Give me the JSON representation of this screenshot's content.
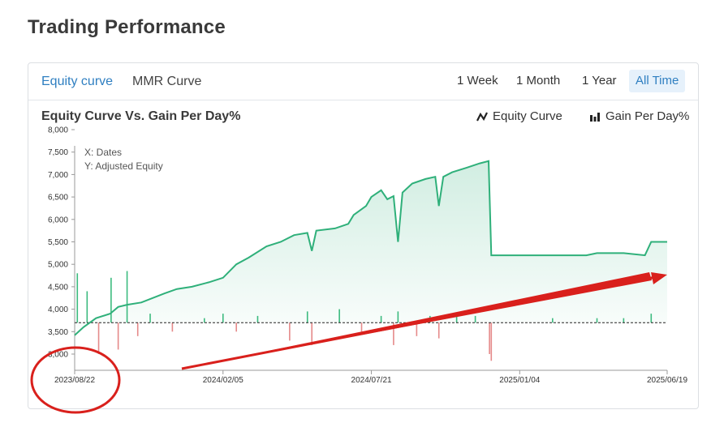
{
  "page": {
    "title": "Trading Performance"
  },
  "tabs": [
    {
      "label": "Equity curve",
      "active": true
    },
    {
      "label": "MMR Curve",
      "active": false
    }
  ],
  "ranges": [
    {
      "label": "1 Week",
      "active": false
    },
    {
      "label": "1 Month",
      "active": false
    },
    {
      "label": "1 Year",
      "active": false
    },
    {
      "label": "All Time",
      "active": true
    }
  ],
  "chart": {
    "title": "Equity Curve Vs. Gain Per Day%",
    "legend": [
      {
        "label": "Equity Curve",
        "icon": "line-chart-icon"
      },
      {
        "label": "Gain Per Day%",
        "icon": "bar-chart-icon"
      }
    ],
    "info": {
      "x": "X: Dates",
      "y": "Y: Adjusted Equity"
    }
  },
  "colors": {
    "accent": "#2f7fc1",
    "equity_line": "#2fb07a",
    "gain_positive": "#3dbb7f",
    "gain_negative": "#e58a8a",
    "annotation": "#d9201c"
  },
  "chart_data": {
    "type": "line",
    "title": "Equity Curve Vs. Gain Per Day%",
    "xlabel": "Dates",
    "ylabel": "Adjusted Equity",
    "y_ticks": [
      "8,000",
      "7,500",
      "7,000",
      "6,500",
      "6,000",
      "5,500",
      "5,000",
      "4,500",
      "4,000",
      "3,500",
      "3,000"
    ],
    "x_ticks": [
      "2023/08/22",
      "2024/02/05",
      "2024/07/21",
      "2025/01/04",
      "2025/06/19"
    ],
    "ylim": [
      3000,
      8000
    ],
    "xlim": [
      "2023/08/22",
      "2025/06/19"
    ],
    "baseline": 3700,
    "series": [
      {
        "name": "Equity Curve",
        "type": "line",
        "points": [
          [
            "2023/08/22",
            3420
          ],
          [
            "2023/09/01",
            3600
          ],
          [
            "2023/09/15",
            3800
          ],
          [
            "2023/10/01",
            3900
          ],
          [
            "2023/10/10",
            4050
          ],
          [
            "2023/10/20",
            4100
          ],
          [
            "2023/11/05",
            4150
          ],
          [
            "2023/12/01",
            4350
          ],
          [
            "2023/12/15",
            4450
          ],
          [
            "2024/01/01",
            4500
          ],
          [
            "2024/01/20",
            4600
          ],
          [
            "2024/02/05",
            4700
          ],
          [
            "2024/02/20",
            5000
          ],
          [
            "2024/03/05",
            5150
          ],
          [
            "2024/03/25",
            5400
          ],
          [
            "2024/04/10",
            5500
          ],
          [
            "2024/04/25",
            5650
          ],
          [
            "2024/05/10",
            5700
          ],
          [
            "2024/05/15",
            5300
          ],
          [
            "2024/05/20",
            5750
          ],
          [
            "2024/06/10",
            5800
          ],
          [
            "2024/06/25",
            5900
          ],
          [
            "2024/07/01",
            6100
          ],
          [
            "2024/07/15",
            6300
          ],
          [
            "2024/07/21",
            6500
          ],
          [
            "2024/08/01",
            6650
          ],
          [
            "2024/08/08",
            6450
          ],
          [
            "2024/08/15",
            6520
          ],
          [
            "2024/08/20",
            5500
          ],
          [
            "2024/08/25",
            6600
          ],
          [
            "2024/09/05",
            6800
          ],
          [
            "2024/09/20",
            6900
          ],
          [
            "2024/10/01",
            6950
          ],
          [
            "2024/10/05",
            6300
          ],
          [
            "2024/10/10",
            6950
          ],
          [
            "2024/10/20",
            7050
          ],
          [
            "2024/11/05",
            7150
          ],
          [
            "2024/11/20",
            7250
          ],
          [
            "2024/11/30",
            7300
          ],
          [
            "2024/12/03",
            5200
          ],
          [
            "2025/01/04",
            5200
          ],
          [
            "2025/02/15",
            5200
          ],
          [
            "2025/03/20",
            5200
          ],
          [
            "2025/04/01",
            5250
          ],
          [
            "2025/05/01",
            5250
          ],
          [
            "2025/05/25",
            5200
          ],
          [
            "2025/06/01",
            5500
          ],
          [
            "2025/06/19",
            5500
          ]
        ]
      },
      {
        "name": "Gain Per Day%",
        "type": "bar",
        "points": [
          [
            "2023/08/25",
            4800
          ],
          [
            "2023/09/05",
            4400
          ],
          [
            "2023/09/18",
            3000
          ],
          [
            "2023/10/02",
            4700
          ],
          [
            "2023/10/10",
            3100
          ],
          [
            "2023/10/20",
            4850
          ],
          [
            "2023/11/01",
            3400
          ],
          [
            "2023/11/15",
            3900
          ],
          [
            "2023/12/10",
            3500
          ],
          [
            "2024/01/15",
            3800
          ],
          [
            "2024/02/05",
            3900
          ],
          [
            "2024/02/20",
            3500
          ],
          [
            "2024/03/15",
            3850
          ],
          [
            "2024/04/20",
            3300
          ],
          [
            "2024/05/10",
            3950
          ],
          [
            "2024/05/15",
            3200
          ],
          [
            "2024/06/15",
            4000
          ],
          [
            "2024/07/10",
            3500
          ],
          [
            "2024/08/01",
            3850
          ],
          [
            "2024/08/15",
            3200
          ],
          [
            "2024/08/20",
            3950
          ],
          [
            "2024/09/10",
            3400
          ],
          [
            "2024/09/25",
            3850
          ],
          [
            "2024/10/05",
            3350
          ],
          [
            "2024/10/25",
            3900
          ],
          [
            "2024/11/15",
            3850
          ],
          [
            "2024/12/01",
            3000
          ],
          [
            "2024/12/03",
            2850
          ],
          [
            "2025/02/10",
            3800
          ],
          [
            "2025/04/01",
            3800
          ],
          [
            "2025/05/01",
            3800
          ],
          [
            "2025/06/01",
            3900
          ]
        ]
      }
    ]
  }
}
